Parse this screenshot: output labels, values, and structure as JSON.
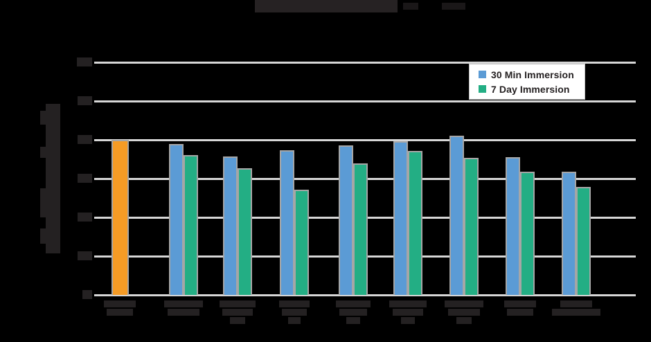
{
  "legend": {
    "items": [
      {
        "label": "30 Min Immersion",
        "color": "#5B9BD5"
      },
      {
        "label": "7 Day Immersion",
        "color": "#23AE84"
      }
    ]
  },
  "colors": {
    "background": "#000000",
    "control_bar": "#F59B25",
    "series_blue": "#5B9BD5",
    "series_green": "#23AE84",
    "bar_outline": "#A6A6A6",
    "gridline": "#D7D7D7",
    "illegible_text": "#242122",
    "legend_background": "#FFFFFF",
    "legend_border": "#BFBFBF",
    "legend_text": "#231F20"
  },
  "chart_data": {
    "type": "bar",
    "title": "",
    "xlabel": "",
    "ylabel": "",
    "ylim": [
      0,
      30
    ],
    "ytick_interval": 5,
    "grid": true,
    "legend_position": "top-right",
    "legibility_note": "Title, y-axis label, y-tick numbers and category labels are dark text composited on a black background and are illegible in the screenshot; values below are estimated from gridlines assuming 0-30 with interval 5.",
    "categories": [
      "",
      "",
      "",
      "",
      "",
      "",
      "",
      "",
      ""
    ],
    "control": {
      "category_index": 0,
      "label": "",
      "value": 20.0,
      "color": "#F59B25"
    },
    "series": [
      {
        "name": "30 Min Immersion",
        "color": "#5B9BD5",
        "values": [
          null,
          19.5,
          17.9,
          18.7,
          19.3,
          19.8,
          20.5,
          17.8,
          15.9
        ]
      },
      {
        "name": "7 Day Immersion",
        "color": "#23AE84",
        "values": [
          null,
          18.0,
          16.3,
          13.6,
          17.0,
          18.6,
          17.7,
          15.9,
          13.9
        ]
      }
    ]
  }
}
